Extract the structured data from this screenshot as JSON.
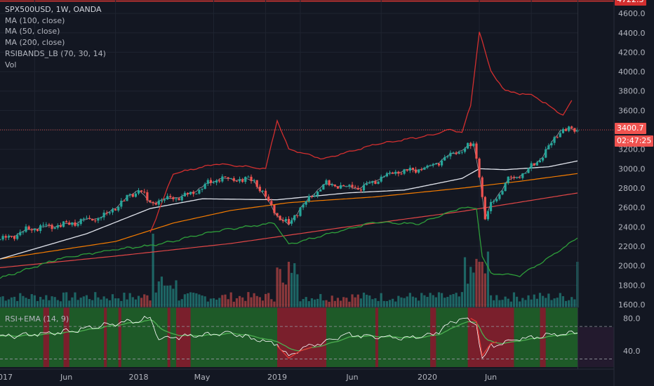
{
  "legend": {
    "symbol": "SPX500USD, 1W, OANDA",
    "studies": [
      "MA (100, close)",
      "MA (50, close)",
      "MA (200, close)",
      "RSIBANDS_LB (70, 30, 14)",
      "Vol"
    ]
  },
  "oscillator": {
    "label": "RSI+EMA (14, 9)"
  },
  "price_tags": {
    "top": "4722.3",
    "last": "3400.7",
    "countdown": "02:47:25"
  },
  "colors": {
    "background": "#131722",
    "up_candle": "#26a69a",
    "down_candle": "#ef5350",
    "ma100": "#e0e3eb",
    "ma50": "#9598a1",
    "ma200": "#f57c00",
    "band_upper": "#d32f2f",
    "band_lower": "#2e9e3a",
    "long_ma": "#e04646",
    "rsi_line": "#ffffff",
    "rsi_ema": "#4caf50",
    "osc_green_bg": "#1e5a28",
    "osc_red_bg": "#7a1f2c"
  },
  "chart_data": {
    "type": "candlestick",
    "x_axis": [
      "2017",
      "Jun",
      "2018",
      "May",
      "2019",
      "Jun",
      "2020",
      "Jun"
    ],
    "y_axis": [
      "1600.0",
      "1800.0",
      "2000.0",
      "2200.0",
      "2400.0",
      "2600.0",
      "2800.0",
      "3000.0",
      "3200.0",
      "3400.0",
      "3600.0",
      "3800.0",
      "4000.0",
      "4200.0",
      "4400.0",
      "4600.0"
    ],
    "osc_y_axis": [
      "40.0",
      "80.0"
    ],
    "price_series": {
      "weeks": [
        0,
        12,
        24,
        36,
        48,
        52,
        56,
        64,
        76,
        88,
        96,
        100,
        104,
        112,
        124,
        136,
        148,
        156,
        164,
        166,
        168,
        170,
        176,
        182,
        188,
        194,
        200
      ],
      "close": [
        2270,
        2390,
        2430,
        2510,
        2790,
        2640,
        2680,
        2720,
        2900,
        2880,
        2520,
        2420,
        2600,
        2840,
        2800,
        2960,
        3010,
        3140,
        3250,
        2950,
        2480,
        2630,
        2880,
        2960,
        3130,
        3400,
        3400
      ]
    },
    "rsi_band_upper": {
      "weeks": [
        52,
        60,
        75,
        92,
        96,
        100,
        112,
        130,
        150,
        155,
        160,
        163,
        166,
        170,
        175,
        185,
        195,
        198
      ],
      "values": [
        2340,
        2950,
        3050,
        3000,
        3500,
        3200,
        3100,
        3250,
        3350,
        3400,
        3380,
        3650,
        4420,
        4000,
        3800,
        3750,
        3550,
        3700
      ]
    },
    "rsi_band_lower": {
      "weeks": [
        0,
        20,
        40,
        55,
        75,
        95,
        100,
        115,
        130,
        145,
        160,
        165,
        167,
        170,
        180,
        190,
        200
      ],
      "values": [
        1870,
        2070,
        2170,
        2220,
        2360,
        2440,
        2220,
        2340,
        2450,
        2430,
        2600,
        2590,
        2100,
        1920,
        1900,
        2080,
        2290
      ]
    },
    "ma100": {
      "weeks": [
        0,
        30,
        52,
        70,
        96,
        120,
        140,
        160,
        166,
        175,
        190,
        200
      ],
      "values": [
        2070,
        2330,
        2590,
        2690,
        2680,
        2750,
        2780,
        2900,
        3000,
        2990,
        3020,
        3080
      ]
    },
    "ma200": {
      "weeks": [
        0,
        40,
        60,
        80,
        100,
        130,
        160,
        180,
        200
      ],
      "values": [
        2070,
        2250,
        2440,
        2570,
        2650,
        2710,
        2800,
        2870,
        2950
      ]
    },
    "ma_long": {
      "weeks": [
        0,
        40,
        80,
        120,
        160,
        200
      ],
      "values": [
        1980,
        2100,
        2230,
        2400,
        2560,
        2750
      ]
    },
    "volume_spikes_weeks": [
      53,
      100,
      166,
      167,
      200
    ],
    "rsi": {
      "weeks": [
        0,
        20,
        52,
        55,
        64,
        80,
        96,
        100,
        104,
        120,
        140,
        150,
        160,
        165,
        167,
        170,
        180,
        200
      ],
      "values": [
        58,
        62,
        80,
        55,
        58,
        62,
        48,
        33,
        42,
        60,
        55,
        60,
        82,
        72,
        30,
        45,
        55,
        63
      ],
      "overbought": 70,
      "oversold": 30,
      "range": [
        20,
        90
      ]
    }
  }
}
